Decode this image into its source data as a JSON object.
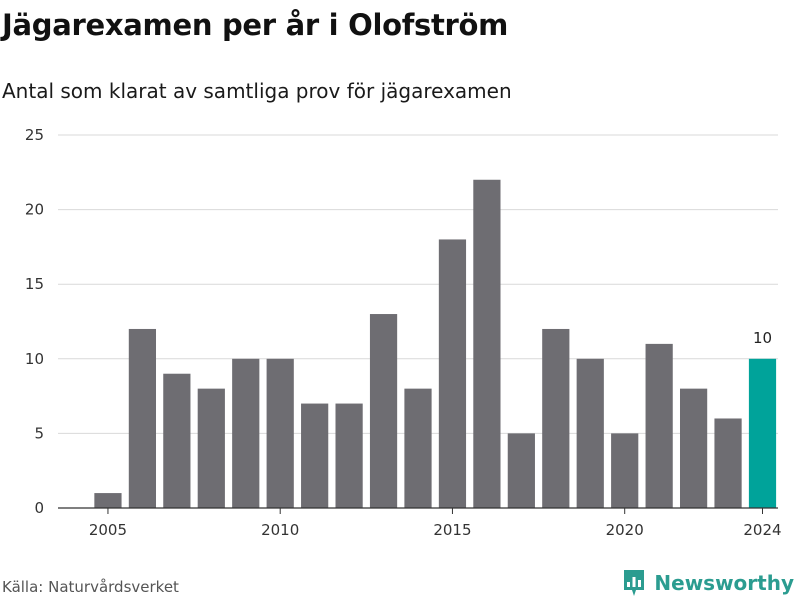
{
  "title": "Jägarexamen per år i Olofström",
  "subtitle": "Antal som klarat av samtliga prov för jägarexamen",
  "source": "Källa: Naturvårdsverket",
  "brand": "Newsworthy",
  "colors": {
    "bar": "#6e6d72",
    "highlight": "#00a39a",
    "grid": "#d9d9d9",
    "brand": "#2b9c90"
  },
  "chart_data": {
    "type": "bar",
    "x": [
      2005,
      2006,
      2007,
      2008,
      2009,
      2010,
      2011,
      2012,
      2013,
      2014,
      2015,
      2016,
      2017,
      2018,
      2019,
      2020,
      2021,
      2022,
      2023,
      2024
    ],
    "values": [
      1,
      12,
      9,
      8,
      10,
      10,
      7,
      7,
      13,
      8,
      18,
      22,
      5,
      12,
      10,
      5,
      11,
      8,
      6,
      10
    ],
    "highlight_x": 2024,
    "highlight_label": "10",
    "xticks": [
      "2005",
      "2010",
      "2015",
      "2020",
      "2024"
    ],
    "yticks": [
      "0",
      "5",
      "10",
      "15",
      "20",
      "25"
    ],
    "ylim": [
      0,
      25
    ],
    "grid": true
  }
}
